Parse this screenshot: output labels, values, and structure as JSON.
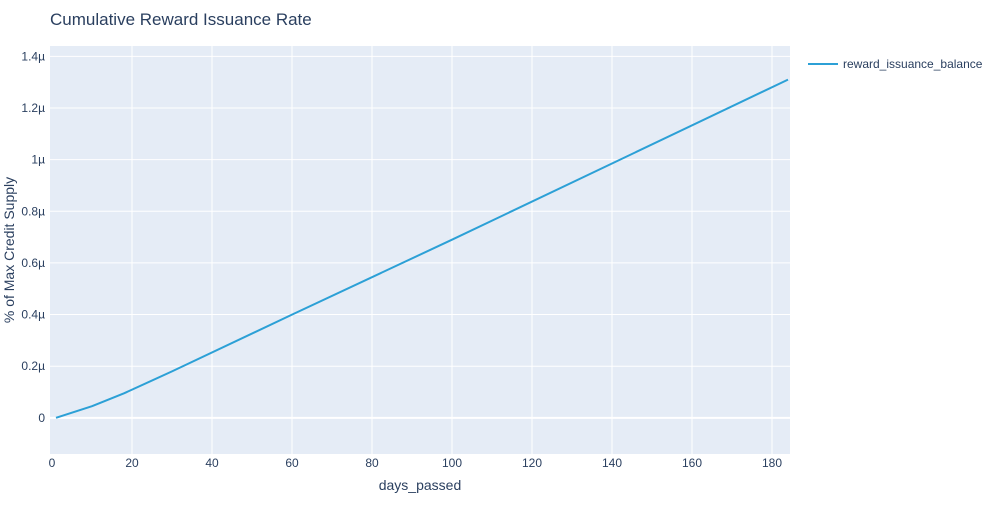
{
  "chart_data": {
    "type": "line",
    "title": "Cumulative Reward Issuance Rate",
    "xlabel": "days_passed",
    "ylabel": "% of Max Credit Supply",
    "xlim": [
      -0.5,
      184.5
    ],
    "ylim": [
      -0.14,
      1.44
    ],
    "y_unit_suffix": "µ",
    "x_ticks": [
      0,
      20,
      40,
      60,
      80,
      100,
      120,
      140,
      160,
      180
    ],
    "x_tick_labels": [
      "0",
      "20",
      "40",
      "60",
      "80",
      "100",
      "120",
      "140",
      "160",
      "180"
    ],
    "y_ticks": [
      0,
      0.2,
      0.4,
      0.6,
      0.8,
      1.0,
      1.2,
      1.4
    ],
    "y_tick_labels": [
      "0",
      "0.2µ",
      "0.4µ",
      "0.6µ",
      "0.8µ",
      "1µ",
      "1.2µ",
      "1.4µ"
    ],
    "grid": true,
    "legend_position": "top-right-outside",
    "series": [
      {
        "name": "reward_issuance_balance",
        "color": "#2ca0d6",
        "x": [
          1,
          10,
          18,
          30,
          60,
          100,
          140,
          184
        ],
        "y": [
          0.0,
          0.045,
          0.095,
          0.18,
          0.4,
          0.69,
          0.985,
          1.31
        ]
      }
    ],
    "colors": {
      "plot_bg": "#e5ecf6",
      "grid": "#ffffff",
      "text": "#2a3f5f"
    }
  }
}
